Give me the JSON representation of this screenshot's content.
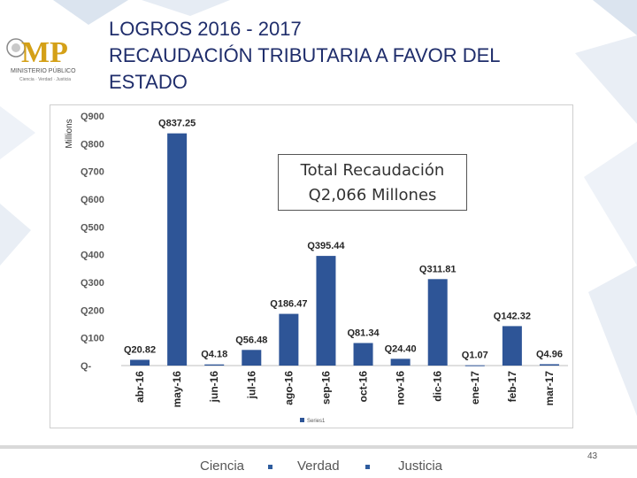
{
  "header": {
    "title_lines": [
      "LOGROS 2016 - 2017",
      "RECAUDACIÓN TRIBUTARIA A FAVOR DEL",
      "ESTADO"
    ]
  },
  "logo": {
    "letters": "MP",
    "name": "MINISTERIO PÚBLICO",
    "motto": "Ciencia · Verdad · Justicia"
  },
  "callout": {
    "line1": "Total Recaudación",
    "line2": "Q2,066 Millones"
  },
  "footer": {
    "words": [
      "Ciencia",
      "Verdad",
      "Justicia"
    ],
    "page_number": "43"
  },
  "colors": {
    "bar": "#2e5597",
    "title": "#1f2d6b",
    "accent": "#2e5c9e",
    "logo_gold": "#d4a017"
  },
  "chart_data": {
    "type": "bar",
    "title": "",
    "ylabel": "Millions",
    "xlabel": "",
    "ylim": [
      0,
      900
    ],
    "yticks": [
      0,
      100,
      200,
      300,
      400,
      500,
      600,
      700,
      800,
      900
    ],
    "ytick_labels": [
      "Q-",
      "Q100",
      "Q200",
      "Q300",
      "Q400",
      "Q500",
      "Q600",
      "Q700",
      "Q800",
      "Q900"
    ],
    "categories": [
      "abr-16",
      "may-16",
      "jun-16",
      "jul-16",
      "ago-16",
      "sep-16",
      "oct-16",
      "nov-16",
      "dic-16",
      "ene-17",
      "feb-17",
      "mar-17"
    ],
    "values": [
      20.82,
      837.25,
      4.18,
      56.48,
      186.47,
      395.44,
      81.34,
      24.4,
      311.81,
      1.07,
      142.32,
      4.96
    ],
    "data_labels": [
      "Q20.82",
      "Q837.25",
      "Q4.18",
      "Q56.48",
      "Q186.47",
      "Q395.44",
      "Q81.34",
      "Q24.40",
      "Q311.81",
      "Q1.07",
      "Q142.32",
      "Q4.96"
    ],
    "legend": [
      "Series1"
    ],
    "legend_position": "bottom"
  }
}
